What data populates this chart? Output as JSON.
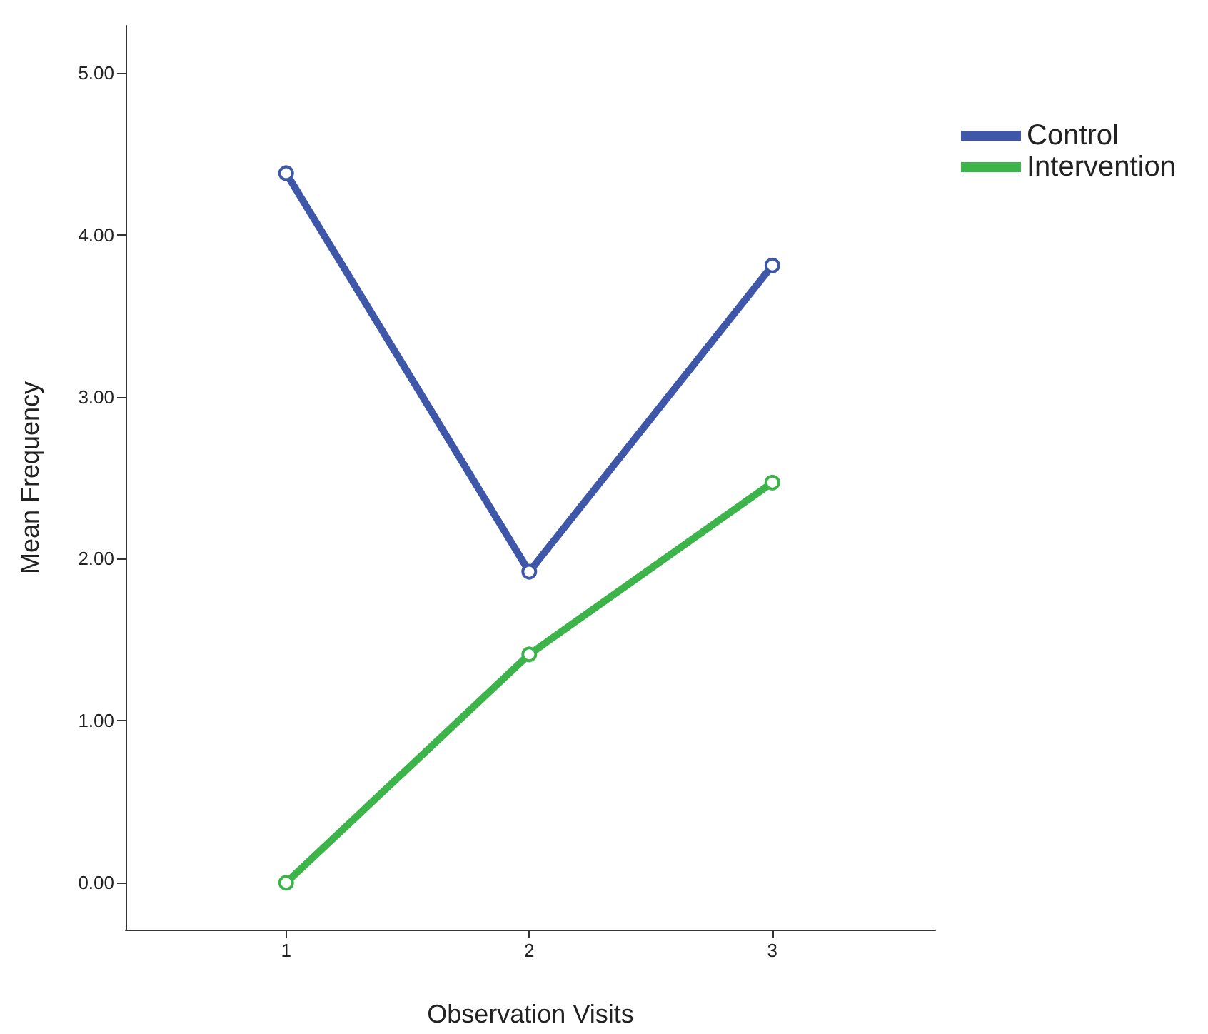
{
  "chart_data": {
    "type": "line",
    "xlabel": "Observation Visits",
    "ylabel": "Mean Frequency",
    "x": [
      1,
      2,
      3
    ],
    "xlim": [
      0.34,
      3.67
    ],
    "xticks": [
      1,
      2,
      3
    ],
    "ylim": [
      -0.29,
      5.29
    ],
    "yticks": [
      {
        "value": 0,
        "label": "0.00"
      },
      {
        "value": 1,
        "label": "1.00"
      },
      {
        "value": 2,
        "label": "2.00"
      },
      {
        "value": 3,
        "label": "3.00"
      },
      {
        "value": 4,
        "label": "4.00"
      },
      {
        "value": 5,
        "label": "5.00"
      }
    ],
    "series": [
      {
        "name": "Control",
        "color": "#3f57a8",
        "values": [
          4.38,
          1.92,
          3.81
        ]
      },
      {
        "name": "Intervention",
        "color": "#3cb44a",
        "values": [
          0,
          1.41,
          2.47
        ]
      }
    ],
    "marker": "circle",
    "line_style": "solid",
    "grid": false,
    "legend": "top right"
  }
}
